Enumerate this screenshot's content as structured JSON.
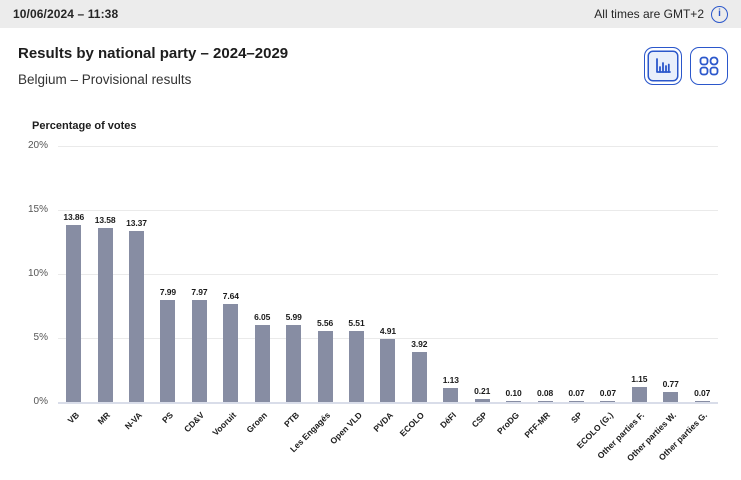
{
  "topbar": {
    "datetime": "10/06/2024 – 11:38",
    "timezone_label": "All times are GMT+2",
    "info_icon": "info-icon"
  },
  "header": {
    "title": "Results by national party – 2024–2029",
    "subtitle": "Belgium – Provisional results"
  },
  "view_toggle": {
    "selected": "bar-chart-view",
    "options": [
      {
        "name": "bar-chart-view",
        "icon": "bar-chart-icon"
      },
      {
        "name": "grid-view",
        "icon": "grid-icon"
      }
    ]
  },
  "chart_data": {
    "type": "bar",
    "title": "Percentage of votes",
    "categories": [
      "VB",
      "MR",
      "N-VA",
      "PS",
      "CD&V",
      "Vooruit",
      "Groen",
      "PTB",
      "Les Engagés",
      "Open VLD",
      "PVDA",
      "ECOLO",
      "DéFI",
      "CSP",
      "ProDG",
      "PFF-MR",
      "SP",
      "ECOLO (G.)",
      "Other parties F.",
      "Other parties W.",
      "Other parties G."
    ],
    "values": [
      13.86,
      13.58,
      13.37,
      7.99,
      7.97,
      7.64,
      6.05,
      5.99,
      5.56,
      5.51,
      4.91,
      3.92,
      1.13,
      0.21,
      0.1,
      0.08,
      0.07,
      0.07,
      1.15,
      0.77,
      0.07
    ],
    "value_labels": [
      "13.86",
      "13.58",
      "13.37",
      "7.99",
      "7.97",
      "7.64",
      "6.05",
      "5.99",
      "5.56",
      "5.51",
      "4.91",
      "3.92",
      "1.13",
      "0.21",
      "0.10",
      "0.08",
      "0.07",
      "0.07",
      "1.15",
      "0.77",
      "0.07"
    ],
    "xlabel": "",
    "ylabel": "Percentage of votes",
    "ylim": [
      0,
      20
    ],
    "yticks": [
      {
        "value": 0,
        "label": "0%"
      },
      {
        "value": 5,
        "label": "5%"
      },
      {
        "value": 10,
        "label": "10%"
      },
      {
        "value": 15,
        "label": "15%"
      },
      {
        "value": 20,
        "label": "20%"
      }
    ],
    "grid": true,
    "legend_position": "none",
    "bar_color": "#878da3"
  },
  "colors": {
    "accent_blue": "#2b57cb",
    "topbar_bg": "#ececec",
    "selected_view_bg": "#e9effb",
    "baseline": "#d9dde9",
    "gridline": "#eaeaea"
  }
}
